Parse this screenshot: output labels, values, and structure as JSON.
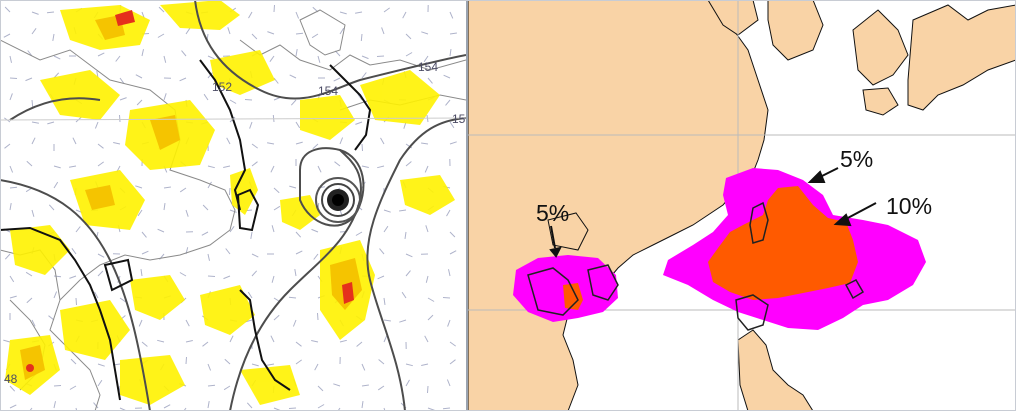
{
  "left_panel": {
    "contour_labels": [
      "152",
      "154",
      "154",
      "15",
      "48"
    ]
  },
  "right_panel": {
    "probability_labels": [
      "5%",
      "5%",
      "10%"
    ],
    "colors": {
      "land": "#f9d3a6",
      "sea": "#ffffff",
      "prob_5": "#ff00ff",
      "prob_10": "#ff5a00",
      "grid": "#bbbbbb",
      "coast": "#111111"
    }
  },
  "colors": {
    "rain_light": "#fff200",
    "rain_mid": "#f5c400",
    "rain_heavy": "#e5301c",
    "contour": "#4d4d4d"
  }
}
